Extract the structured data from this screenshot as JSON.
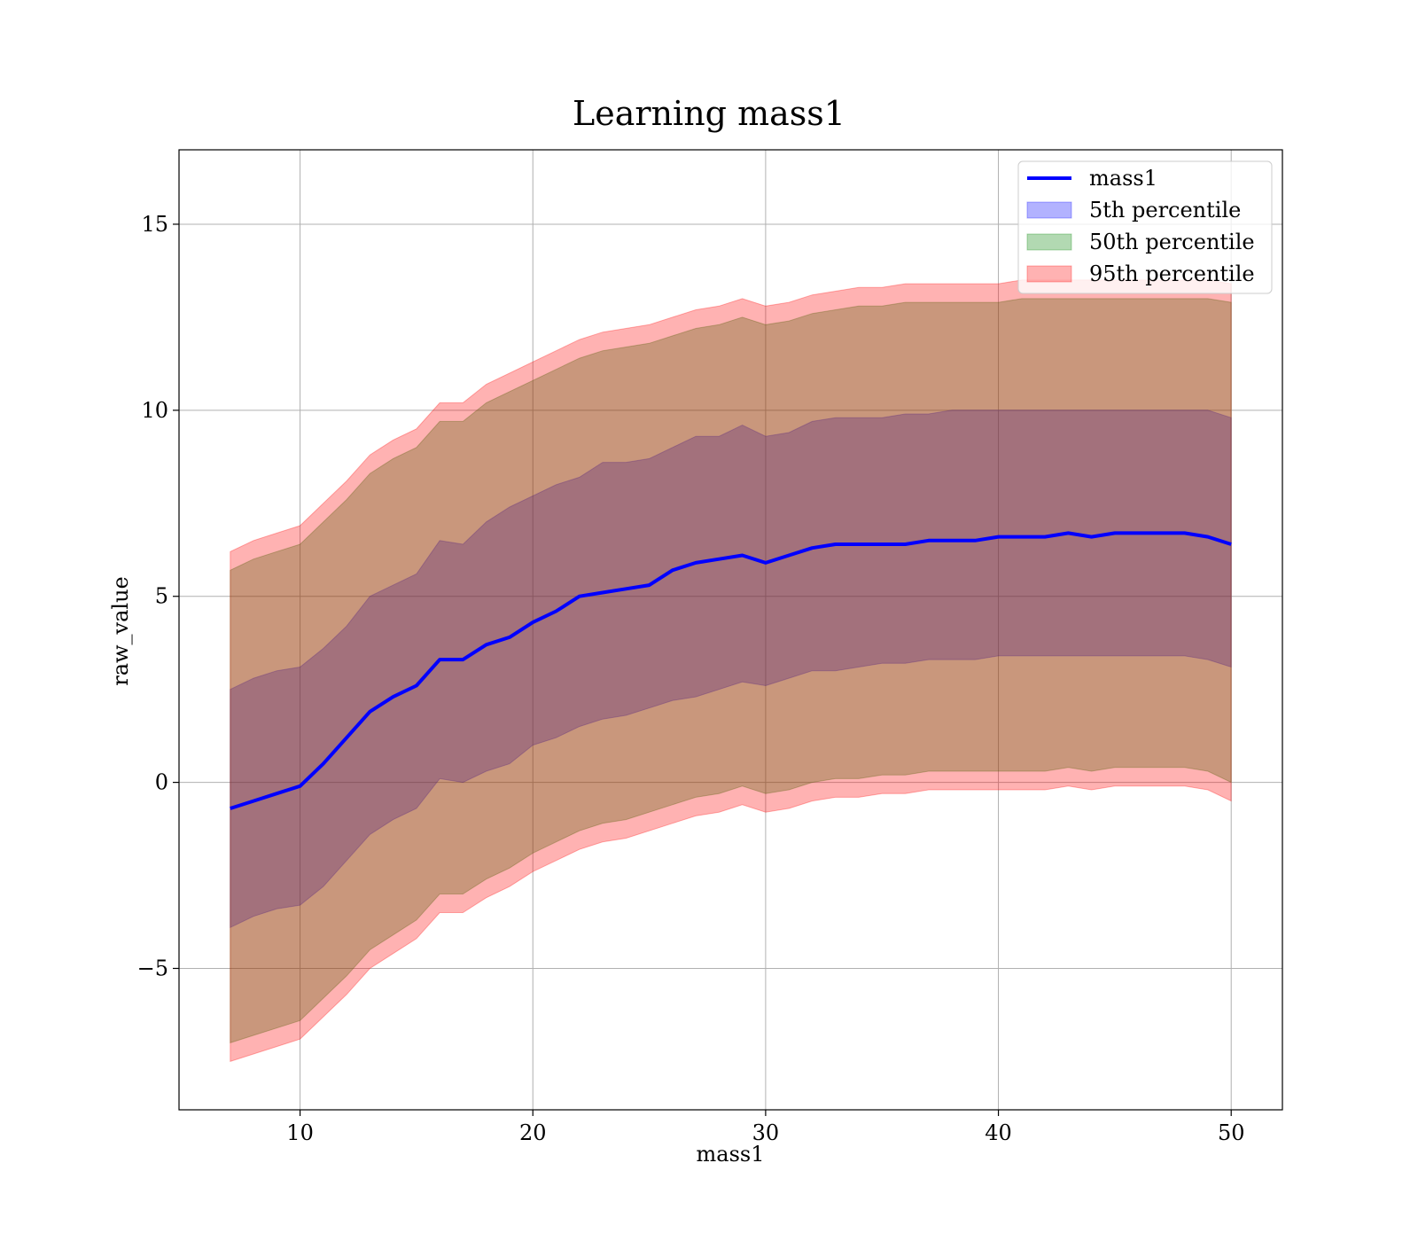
{
  "chart_data": {
    "type": "area",
    "title": "Learning mass1",
    "xlabel": "mass1",
    "ylabel": "raw_value",
    "xlim": [
      4.8,
      52.2
    ],
    "ylim": [
      -8.8,
      17.0
    ],
    "x_ticks": [
      10,
      20,
      30,
      40,
      50
    ],
    "y_ticks": [
      -5,
      0,
      5,
      10,
      15
    ],
    "x_tick_labels": [
      "10",
      "20",
      "30",
      "40",
      "50"
    ],
    "y_tick_labels": [
      "−5",
      "0",
      "5",
      "10",
      "15"
    ],
    "grid": true,
    "legend_position": "top-right",
    "x": [
      7,
      8,
      9,
      10,
      11,
      12,
      13,
      14,
      15,
      16,
      17,
      18,
      19,
      20,
      21,
      22,
      23,
      24,
      25,
      26,
      27,
      28,
      29,
      30,
      31,
      32,
      33,
      34,
      35,
      36,
      37,
      38,
      39,
      40,
      41,
      42,
      43,
      44,
      45,
      46,
      47,
      48,
      49,
      50
    ],
    "series": [
      {
        "name": "mass1",
        "kind": "line",
        "color": "#0000ff",
        "values": [
          -0.7,
          -0.5,
          -0.3,
          -0.1,
          0.5,
          1.2,
          1.9,
          2.3,
          2.6,
          3.3,
          3.3,
          3.7,
          3.9,
          4.3,
          4.6,
          5.0,
          5.1,
          5.2,
          5.3,
          5.7,
          5.9,
          6.0,
          6.1,
          5.9,
          6.1,
          6.3,
          6.4,
          6.4,
          6.4,
          6.4,
          6.5,
          6.5,
          6.5,
          6.6,
          6.6,
          6.6,
          6.7,
          6.6,
          6.7,
          6.7,
          6.7,
          6.7,
          6.6,
          6.4
        ]
      },
      {
        "name": "5th percentile",
        "kind": "band",
        "color": "#0000ff",
        "upper": [
          2.5,
          2.8,
          3.0,
          3.1,
          3.6,
          4.2,
          5.0,
          5.3,
          5.6,
          6.5,
          6.4,
          7.0,
          7.4,
          7.7,
          8.0,
          8.2,
          8.6,
          8.6,
          8.7,
          9.0,
          9.3,
          9.3,
          9.6,
          9.3,
          9.4,
          9.7,
          9.8,
          9.8,
          9.8,
          9.9,
          9.9,
          10.0,
          10.0,
          10.0,
          10.0,
          10.0,
          10.0,
          10.0,
          10.0,
          10.0,
          10.0,
          10.0,
          10.0,
          9.8
        ],
        "lower": [
          -3.9,
          -3.6,
          -3.4,
          -3.3,
          -2.8,
          -2.1,
          -1.4,
          -1.0,
          -0.7,
          0.1,
          0.0,
          0.3,
          0.5,
          1.0,
          1.2,
          1.5,
          1.7,
          1.8,
          2.0,
          2.2,
          2.3,
          2.5,
          2.7,
          2.6,
          2.8,
          3.0,
          3.0,
          3.1,
          3.2,
          3.2,
          3.3,
          3.3,
          3.3,
          3.4,
          3.4,
          3.4,
          3.4,
          3.4,
          3.4,
          3.4,
          3.4,
          3.4,
          3.3,
          3.1
        ]
      },
      {
        "name": "50th percentile",
        "kind": "band",
        "color": "#008000",
        "upper": [
          5.7,
          6.0,
          6.2,
          6.4,
          7.0,
          7.6,
          8.3,
          8.7,
          9.0,
          9.7,
          9.7,
          10.2,
          10.5,
          10.8,
          11.1,
          11.4,
          11.6,
          11.7,
          11.8,
          12.0,
          12.2,
          12.3,
          12.5,
          12.3,
          12.4,
          12.6,
          12.7,
          12.8,
          12.8,
          12.9,
          12.9,
          12.9,
          12.9,
          12.9,
          13.0,
          13.0,
          13.0,
          13.0,
          13.0,
          13.0,
          13.0,
          13.0,
          13.0,
          12.9
        ],
        "lower": [
          -7.0,
          -6.8,
          -6.6,
          -6.4,
          -5.8,
          -5.2,
          -4.5,
          -4.1,
          -3.7,
          -3.0,
          -3.0,
          -2.6,
          -2.3,
          -1.9,
          -1.6,
          -1.3,
          -1.1,
          -1.0,
          -0.8,
          -0.6,
          -0.4,
          -0.3,
          -0.1,
          -0.3,
          -0.2,
          0.0,
          0.1,
          0.1,
          0.2,
          0.2,
          0.3,
          0.3,
          0.3,
          0.3,
          0.3,
          0.3,
          0.4,
          0.3,
          0.4,
          0.4,
          0.4,
          0.4,
          0.3,
          0.0
        ]
      },
      {
        "name": "95th percentile",
        "kind": "band",
        "color": "#ff0000",
        "upper": [
          6.2,
          6.5,
          6.7,
          6.9,
          7.5,
          8.1,
          8.8,
          9.2,
          9.5,
          10.2,
          10.2,
          10.7,
          11.0,
          11.3,
          11.6,
          11.9,
          12.1,
          12.2,
          12.3,
          12.5,
          12.7,
          12.8,
          13.0,
          12.8,
          12.9,
          13.1,
          13.2,
          13.3,
          13.3,
          13.4,
          13.4,
          13.4,
          13.4,
          13.4,
          13.5,
          13.5,
          13.5,
          13.5,
          13.5,
          13.5,
          13.5,
          13.5,
          13.5,
          13.4
        ],
        "lower": [
          -7.5,
          -7.3,
          -7.1,
          -6.9,
          -6.3,
          -5.7,
          -5.0,
          -4.6,
          -4.2,
          -3.5,
          -3.5,
          -3.1,
          -2.8,
          -2.4,
          -2.1,
          -1.8,
          -1.6,
          -1.5,
          -1.3,
          -1.1,
          -0.9,
          -0.8,
          -0.6,
          -0.8,
          -0.7,
          -0.5,
          -0.4,
          -0.4,
          -0.3,
          -0.3,
          -0.2,
          -0.2,
          -0.2,
          -0.2,
          -0.2,
          -0.2,
          -0.1,
          -0.2,
          -0.1,
          -0.1,
          -0.1,
          -0.1,
          -0.2,
          -0.5
        ]
      }
    ]
  }
}
